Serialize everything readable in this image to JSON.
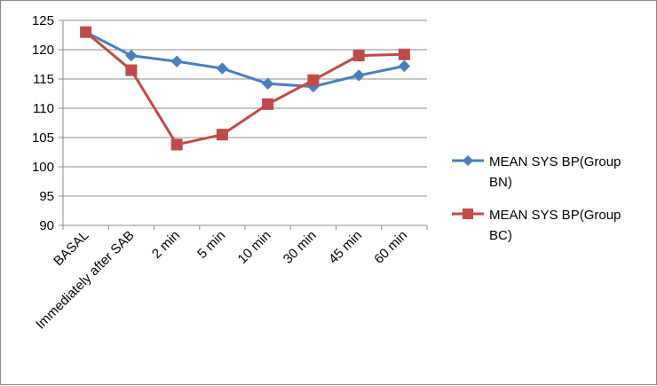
{
  "chart_data": {
    "type": "line",
    "categories": [
      "BASAL",
      "Immediately after SAB",
      "2 min",
      "5 min",
      "10 min",
      "30 min",
      "45 min",
      "60 min"
    ],
    "ylim": [
      90,
      125
    ],
    "yticks": [
      90,
      95,
      100,
      105,
      110,
      115,
      120,
      125
    ],
    "grid": true,
    "legend_position": "right",
    "series": [
      {
        "name": "MEAN SYS BP(Group BN)",
        "legend_lines": [
          "MEAN SYS BP(Group",
          "BN)"
        ],
        "marker": "diamond",
        "color": "#4a7ebb",
        "values": [
          123,
          119,
          118,
          116.8,
          114.2,
          113.7,
          115.6,
          117.2
        ]
      },
      {
        "name": "MEAN SYS BP(Group BC)",
        "legend_lines": [
          "MEAN SYS BP(Group",
          "BC)"
        ],
        "marker": "square",
        "color": "#be4b48",
        "values": [
          123,
          116.5,
          103.8,
          105.5,
          110.7,
          114.8,
          119,
          119.2
        ]
      }
    ]
  }
}
